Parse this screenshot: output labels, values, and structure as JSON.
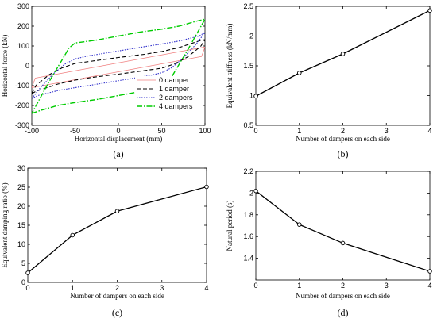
{
  "chart_data": [
    {
      "id": "a",
      "type": "line",
      "panel_label": "(a)",
      "xlabel": "Horizontal displacement (mm)",
      "ylabel": "Horizontal force (kN)",
      "xlim": [
        -100,
        100
      ],
      "ylim": [
        -300,
        300
      ],
      "xticks": [
        -100,
        -50,
        0,
        50,
        100
      ],
      "yticks": [
        -300,
        -200,
        -100,
        0,
        100,
        200,
        300
      ],
      "legend_position": "bottom-right",
      "grid": false,
      "series": [
        {
          "name": "0 damper",
          "color": "#f08080",
          "dash": "solid",
          "width": 0.8,
          "x": [
            -100,
            -60,
            -20,
            20,
            60,
            96,
            100,
            60,
            20,
            -20,
            -60,
            -96,
            -100
          ],
          "y": [
            -110,
            -78,
            -46,
            -14,
            18,
            47,
            95,
            63,
            31,
            -1,
            -33,
            -62,
            -110
          ]
        },
        {
          "name": "1 damper",
          "color": "#000000",
          "dash": "5,3",
          "width": 1.1,
          "x": [
            -100,
            -95,
            -70,
            -50,
            -30,
            0,
            30,
            50,
            65,
            80,
            95,
            100,
            95,
            70,
            50,
            30,
            0,
            -30,
            -50,
            -65,
            -80,
            -95,
            -100
          ],
          "y": [
            -140,
            -128,
            -92,
            -72,
            -58,
            -42,
            -24,
            -12,
            10,
            45,
            98,
            132,
            128,
            92,
            72,
            58,
            42,
            24,
            12,
            -10,
            -45,
            -98,
            -140
          ]
        },
        {
          "name": "2 dampers",
          "color": "#3333cc",
          "dash": "1.5,1.5",
          "width": 1.1,
          "x": [
            -100,
            -93,
            -70,
            -50,
            -35,
            0,
            35,
            50,
            62,
            75,
            90,
            100,
            93,
            70,
            50,
            35,
            0,
            -35,
            -50,
            -62,
            -75,
            -90,
            -100
          ],
          "y": [
            -165,
            -150,
            -125,
            -110,
            -100,
            -75,
            -50,
            -35,
            -8,
            40,
            110,
            168,
            150,
            125,
            110,
            100,
            75,
            50,
            35,
            8,
            -40,
            -110,
            -165
          ]
        },
        {
          "name": "4 dampers",
          "color": "#00cc00",
          "dash": "7,2,1.5,2",
          "width": 1.4,
          "x": [
            -100,
            -90,
            -70,
            -50,
            -25,
            0,
            25,
            50,
            57,
            65,
            80,
            100,
            90,
            70,
            50,
            25,
            0,
            -25,
            -50,
            -57,
            -65,
            -80,
            -100
          ],
          "y": [
            -240,
            -225,
            -200,
            -185,
            -170,
            -150,
            -130,
            -115,
            -90,
            -30,
            80,
            235,
            225,
            200,
            185,
            170,
            150,
            130,
            115,
            90,
            30,
            -80,
            -240
          ]
        }
      ]
    },
    {
      "id": "b",
      "type": "line",
      "panel_label": "(b)",
      "xlabel": "Number of dampers on each side",
      "ylabel": "Equivalent stiffness (kN/mm)",
      "xlim": [
        0,
        4
      ],
      "ylim": [
        0.5,
        2.5
      ],
      "xticks": [
        0,
        1,
        2,
        3,
        4
      ],
      "yticks": [
        0.5,
        1,
        1.5,
        2,
        2.5
      ],
      "grid": false,
      "series": [
        {
          "color": "#000000",
          "x": [
            0,
            1,
            2,
            4
          ],
          "y": [
            0.99,
            1.38,
            1.7,
            2.43
          ]
        }
      ]
    },
    {
      "id": "c",
      "type": "line",
      "panel_label": "(c)",
      "xlabel": "Number of dampers on each side",
      "ylabel": "Equivalent damping ratio (%)",
      "xlim": [
        0,
        4
      ],
      "ylim": [
        0,
        30
      ],
      "xticks": [
        0,
        1,
        2,
        3,
        4
      ],
      "yticks": [
        0,
        5,
        10,
        15,
        20,
        25,
        30
      ],
      "grid": false,
      "series": [
        {
          "color": "#000000",
          "x": [
            0,
            1,
            2,
            4
          ],
          "y": [
            2.5,
            12.4,
            18.7,
            25.1
          ]
        }
      ]
    },
    {
      "id": "d",
      "type": "line",
      "panel_label": "(d)",
      "xlabel": "Number of dampers on each side",
      "ylabel": "Natural period (s)",
      "xlim": [
        0,
        4
      ],
      "ylim": [
        1.2,
        2.2
      ],
      "xticks": [
        0,
        1,
        2,
        3,
        4
      ],
      "yticks": [
        1.4,
        1.6,
        1.8,
        2,
        2.2
      ],
      "grid": false,
      "series": [
        {
          "color": "#000000",
          "x": [
            0,
            1,
            2,
            4
          ],
          "y": [
            2.02,
            1.71,
            1.54,
            1.28
          ]
        }
      ]
    }
  ]
}
